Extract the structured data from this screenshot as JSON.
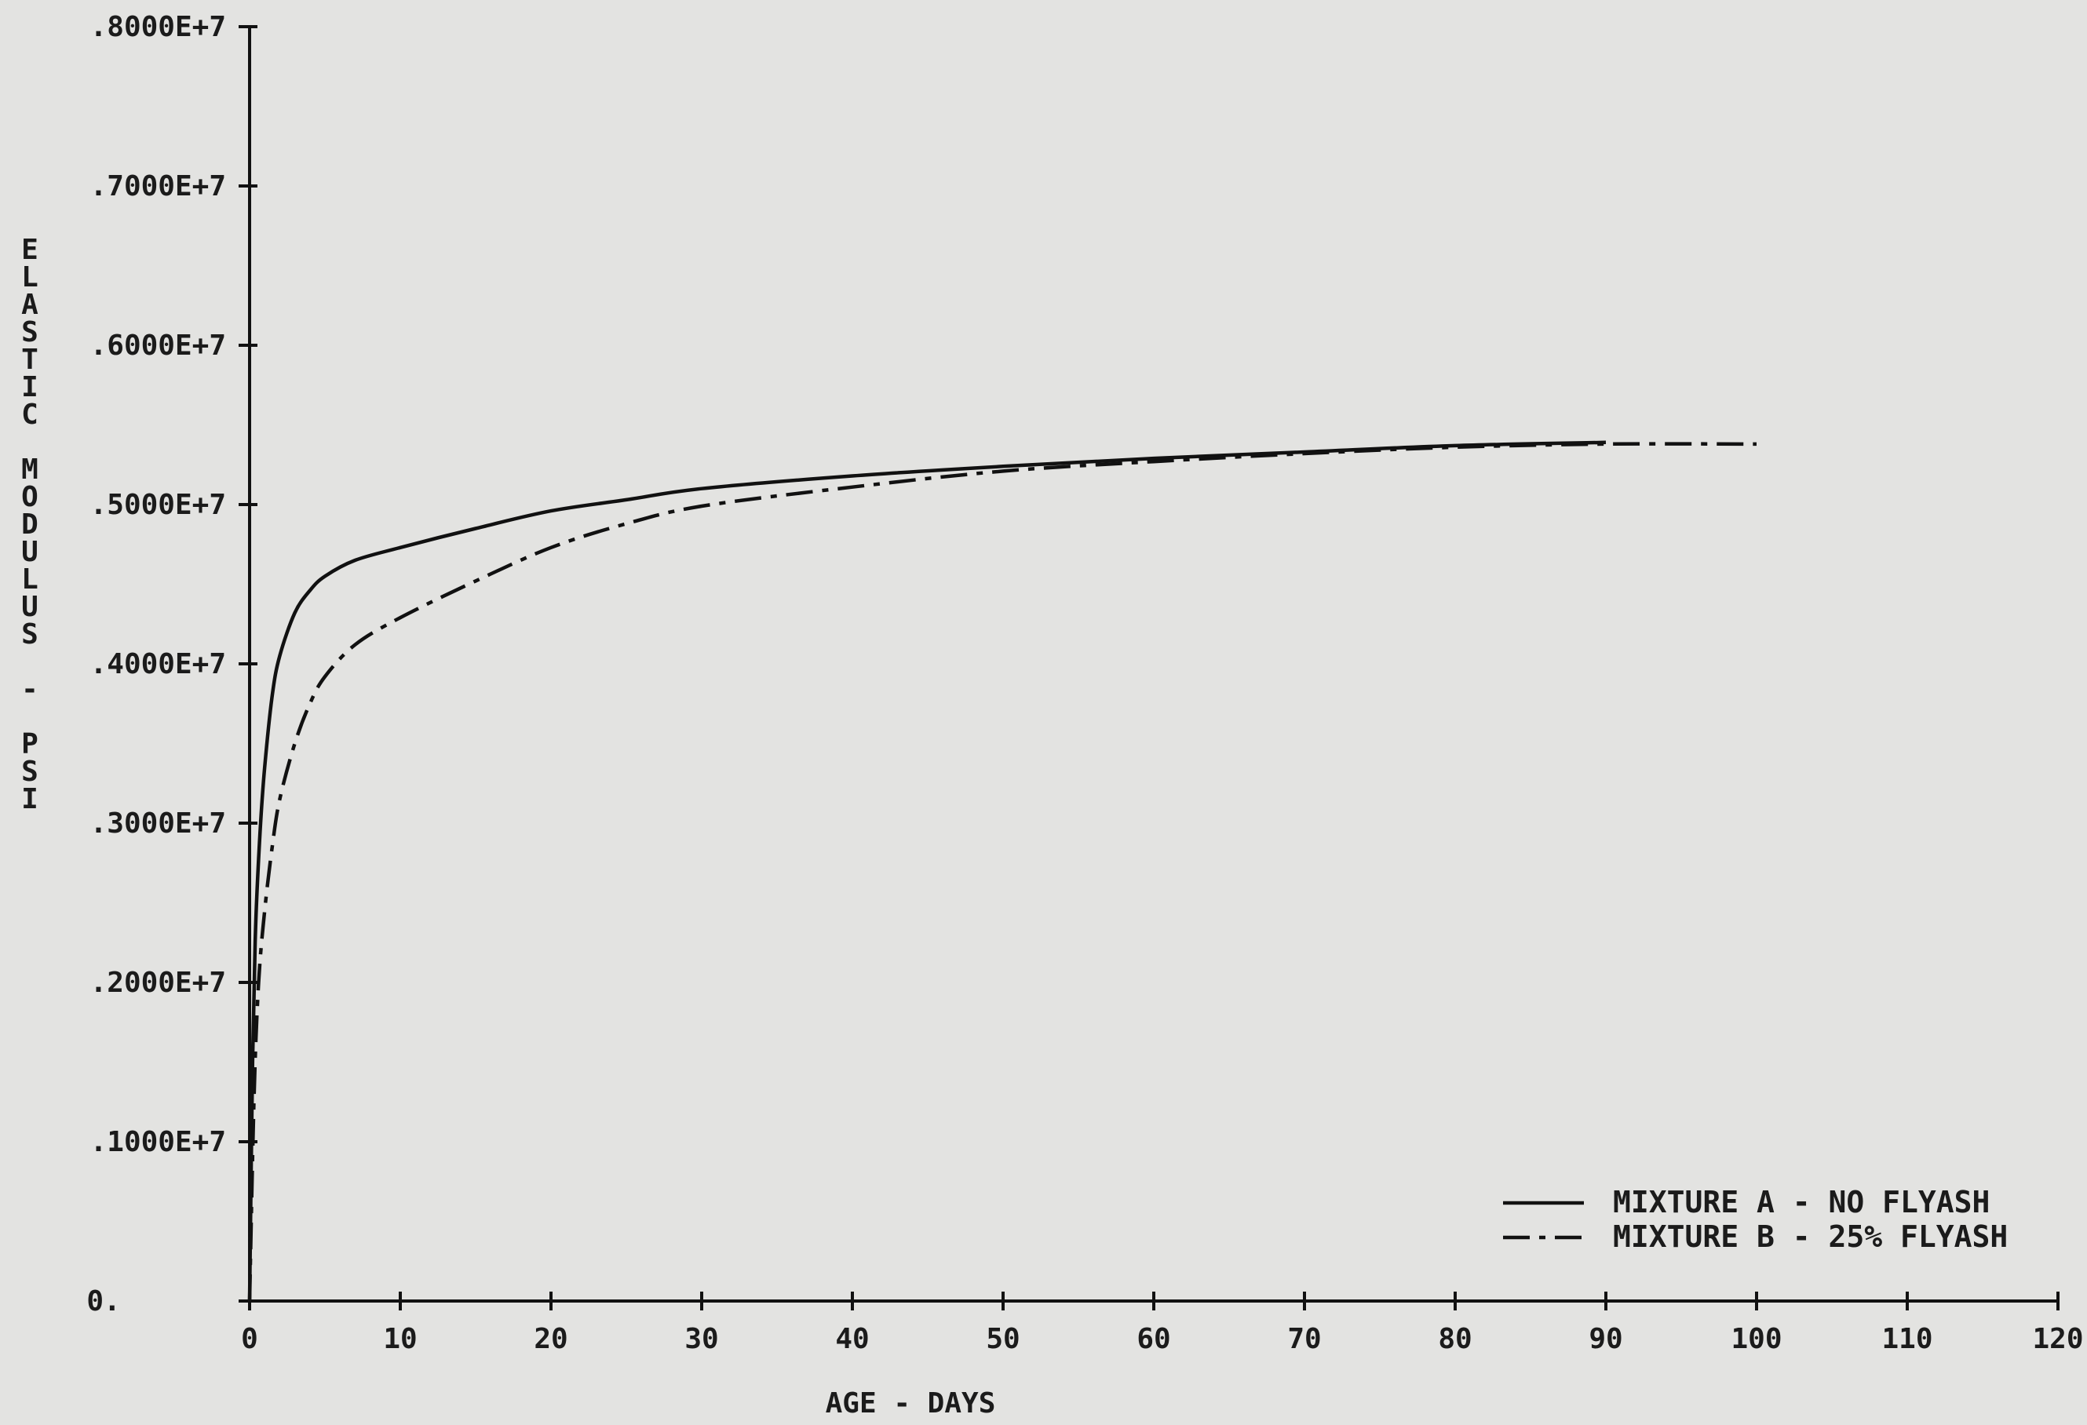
{
  "chart_data": {
    "type": "line",
    "xlabel": "AGE - DAYS",
    "ylabel": "ELASTIC MODULUS - PSI",
    "xlim": [
      0,
      120
    ],
    "ylim": [
      0,
      8000000
    ],
    "x_ticks": [
      0,
      10,
      20,
      30,
      40,
      50,
      60,
      70,
      80,
      90,
      100,
      110,
      120
    ],
    "x_tick_labels": [
      "0",
      "10",
      "20",
      "30",
      "40",
      "50",
      "60",
      "70",
      "80",
      "90",
      "100",
      "110",
      "120"
    ],
    "y_ticks": [
      0,
      1000000,
      2000000,
      3000000,
      4000000,
      5000000,
      6000000,
      7000000,
      8000000
    ],
    "y_tick_labels": [
      "0.",
      ".1000E+7",
      ".2000E+7",
      ".3000E+7",
      ".4000E+7",
      ".5000E+7",
      ".6000E+7",
      ".7000E+7",
      ".8000E+7"
    ],
    "grid": false,
    "legend_position": "bottom-right",
    "series": [
      {
        "name": "MIXTURE A - NO FLYASH",
        "line_style": "solid",
        "color": "#111111",
        "x": [
          0,
          0.2,
          0.4,
          0.7,
          1,
          1.5,
          2,
          3,
          4,
          5,
          7,
          10,
          15,
          20,
          25,
          30,
          40,
          50,
          60,
          70,
          80,
          90
        ],
        "y": [
          0,
          1500000,
          2350000,
          2950000,
          3350000,
          3800000,
          4050000,
          4320000,
          4460000,
          4550000,
          4650000,
          4730000,
          4850000,
          4960000,
          5030000,
          5100000,
          5180000,
          5240000,
          5290000,
          5330000,
          5370000,
          5390000
        ]
      },
      {
        "name": "MIXTURE B - 25% FLYASH",
        "line_style": "dash-dot",
        "color": "#111111",
        "x": [
          0,
          0.3,
          0.6,
          1,
          1.5,
          2,
          3,
          4,
          5,
          7,
          10,
          15,
          20,
          25,
          30,
          40,
          50,
          60,
          70,
          80,
          90,
          100
        ],
        "y": [
          0,
          1300000,
          2000000,
          2450000,
          2850000,
          3150000,
          3500000,
          3750000,
          3920000,
          4120000,
          4290000,
          4520000,
          4730000,
          4880000,
          4990000,
          5110000,
          5210000,
          5270000,
          5320000,
          5360000,
          5380000,
          5380000
        ]
      }
    ]
  }
}
